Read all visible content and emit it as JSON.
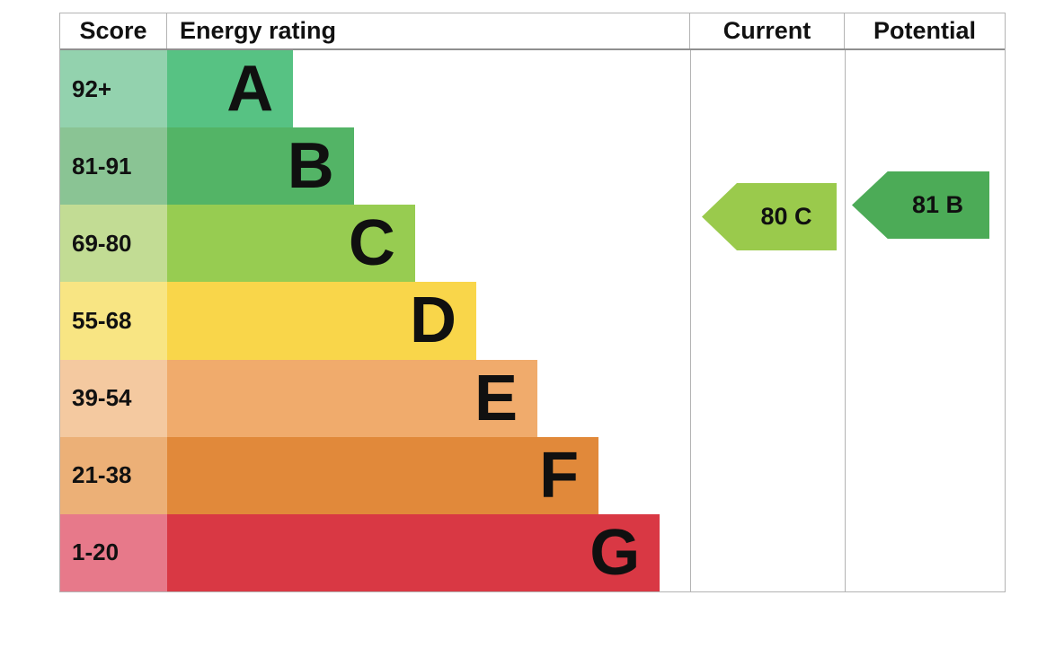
{
  "table": {
    "headers": {
      "score": "Score",
      "energy_rating": "Energy rating",
      "current": "Current",
      "potential": "Potential"
    },
    "bands": [
      {
        "letter": "A",
        "range": "92+",
        "color": "#57c283",
        "score_color": "#93d2ae",
        "bar_width_pct": 24.1
      },
      {
        "letter": "B",
        "range": "81-91",
        "color": "#53b466",
        "score_color": "#8ac494",
        "bar_width_pct": 35.7
      },
      {
        "letter": "C",
        "range": "69-80",
        "color": "#97cc51",
        "score_color": "#c2dc94",
        "bar_width_pct": 47.4
      },
      {
        "letter": "D",
        "range": "55-68",
        "color": "#f9d64a",
        "score_color": "#f8e583",
        "bar_width_pct": 59.1
      },
      {
        "letter": "E",
        "range": "39-54",
        "color": "#f0ab6c",
        "score_color": "#f4c9a0",
        "bar_width_pct": 70.8
      },
      {
        "letter": "F",
        "range": "21-38",
        "color": "#e1893a",
        "score_color": "#ecb077",
        "bar_width_pct": 82.5
      },
      {
        "letter": "G",
        "range": "1-20",
        "color": "#d93844",
        "score_color": "#e7798a",
        "bar_width_pct": 94.2
      }
    ],
    "current_arrow": {
      "label": "80 C",
      "color": "#9aca4c"
    },
    "potential_arrow": {
      "label": "81 B",
      "color": "#4cab57"
    }
  },
  "chart_data": {
    "type": "bar",
    "title": "Energy rating",
    "columns": [
      "Score",
      "Energy rating",
      "Current",
      "Potential"
    ],
    "categories": [
      "A",
      "B",
      "C",
      "D",
      "E",
      "F",
      "G"
    ],
    "score_ranges": [
      "92+",
      "81-91",
      "69-80",
      "55-68",
      "39-54",
      "21-38",
      "1-20"
    ],
    "band_colors": [
      "#57c283",
      "#53b466",
      "#97cc51",
      "#f9d64a",
      "#f0ab6c",
      "#e1893a",
      "#d93844"
    ],
    "bar_lengths_pct_of_rating_column": [
      24.1,
      35.7,
      47.4,
      59.1,
      70.8,
      82.5,
      94.2
    ],
    "current": {
      "score": 80,
      "rating": "C",
      "arrow_color": "#9aca4c"
    },
    "potential": {
      "score": 81,
      "rating": "B",
      "arrow_color": "#4cab57"
    },
    "legend_position": "none",
    "grid": false
  }
}
